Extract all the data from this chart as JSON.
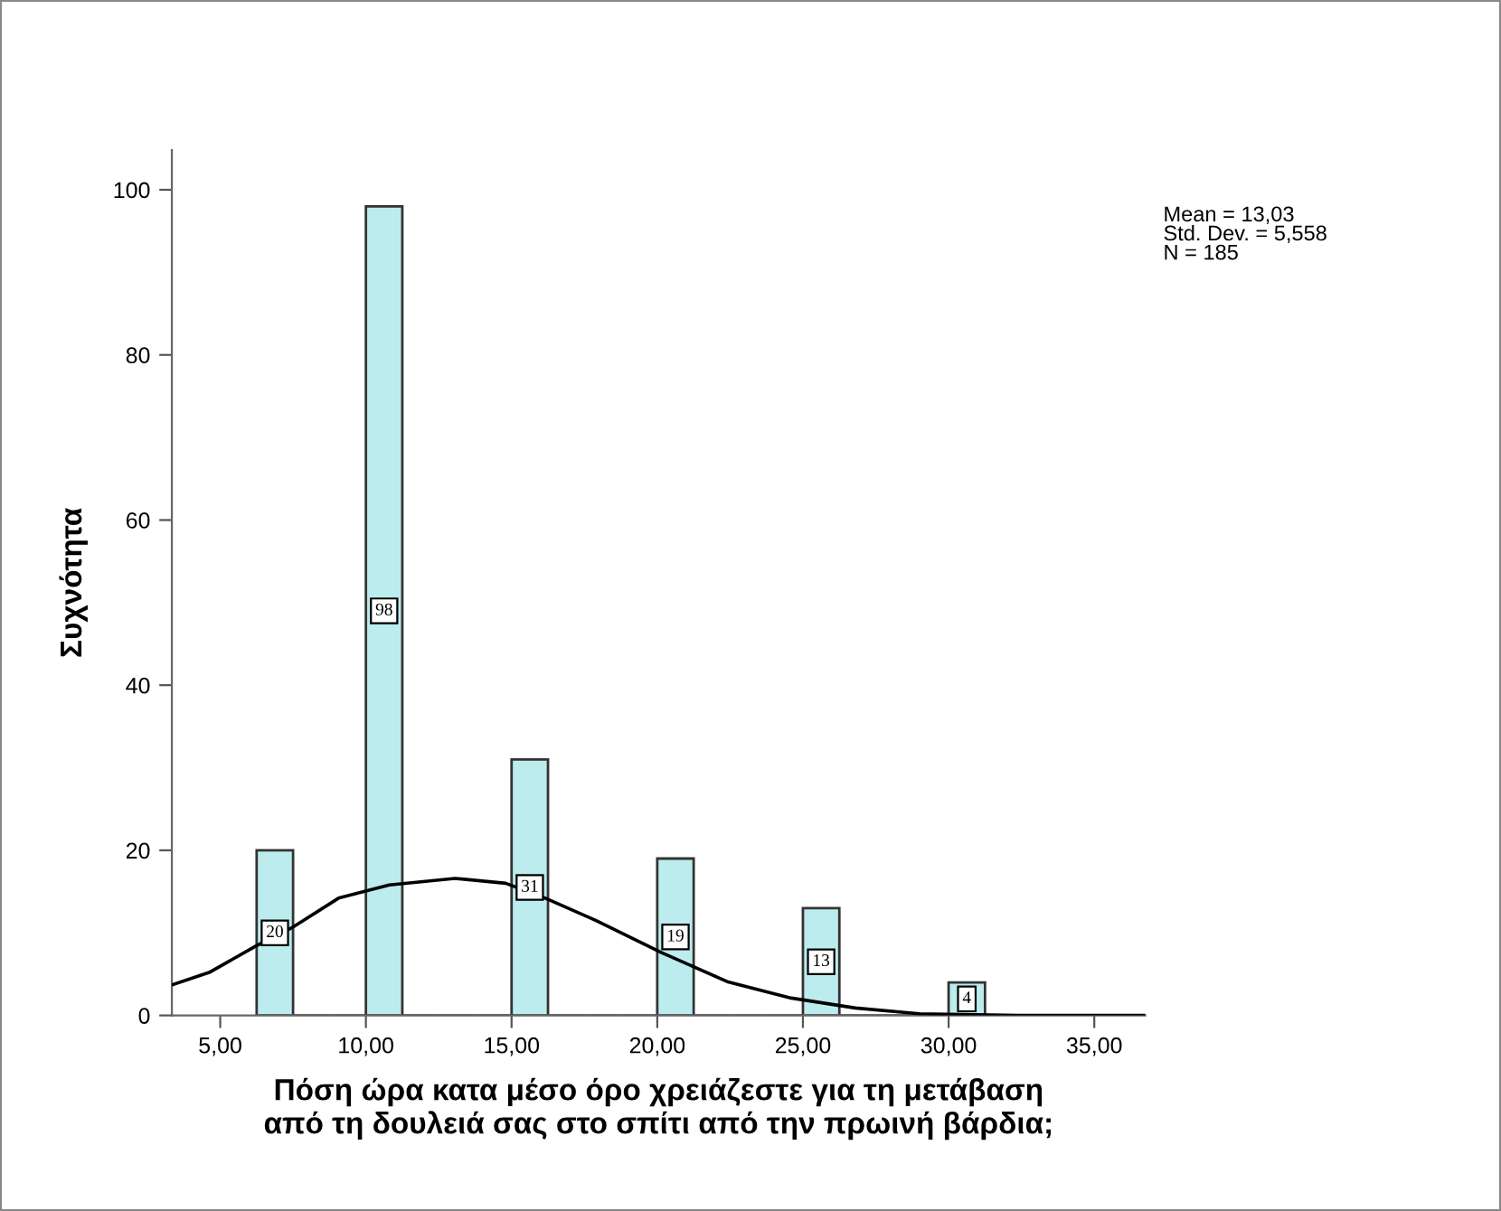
{
  "chart_data": {
    "type": "histogram",
    "xlabel": "Πόση ώρα κατα μέσο όρο χρειάζεστε για τη μετάβαση\nαπό τη δουλειά σας στο σπίτι από την πρωινή βάρδια;",
    "ylabel": "Συχνότητα",
    "annotations": [
      "Mean = 13,03\nStd. Dev. = 5,558\nN = 185"
    ],
    "bins": [
      6.25,
      7.5,
      8.75,
      10,
      11.25,
      12.5,
      13.75,
      15,
      16.25,
      17.5,
      18.75,
      20,
      21.25,
      22.5,
      23.75,
      25,
      26.25,
      27.5,
      28.75,
      30,
      31.25
    ],
    "values": [
      20,
      0,
      0,
      98,
      0,
      0,
      0,
      31,
      0,
      0,
      0,
      19,
      0,
      0,
      0,
      13,
      0,
      0,
      0,
      4
    ],
    "value_labels": [
      "20",
      null,
      null,
      "98",
      null,
      null,
      null,
      "31",
      null,
      null,
      null,
      "19",
      null,
      null,
      null,
      "13",
      null,
      null,
      null,
      "4"
    ],
    "color": "#bcecee",
    "series": [
      {
        "type": "line",
        "color": "#000000",
        "x": [
          3.34,
          4.62,
          6.22,
          7.5,
          9.06,
          10.8,
          13.05,
          14.8,
          16.16,
          17.9,
          20.15,
          22.4,
          24.6,
          26.8,
          29.0,
          32.4,
          36.75
        ],
        "values": [
          3.7,
          5.2,
          8.4,
          10.7,
          14.2,
          15.8,
          16.6,
          16.0,
          14.2,
          11.5,
          7.6,
          4.1,
          2.1,
          0.9,
          0.2,
          0,
          0
        ]
      }
    ],
    "xlim": [
      3.34,
      36.75
    ],
    "xticks": [
      {
        "value": 5,
        "label": "5,00"
      },
      {
        "value": 10,
        "label": "10,00"
      },
      {
        "value": 15,
        "label": "15,00"
      },
      {
        "value": 20,
        "label": "20,00"
      },
      {
        "value": 25,
        "label": "25,00"
      },
      {
        "value": 30,
        "label": "30,00"
      },
      {
        "value": 35,
        "label": "35,00"
      }
    ],
    "ylim": [
      0,
      104.8
    ],
    "yticks": [
      0,
      20,
      40,
      60,
      80,
      100
    ],
    "grid": false,
    "legend": false
  }
}
